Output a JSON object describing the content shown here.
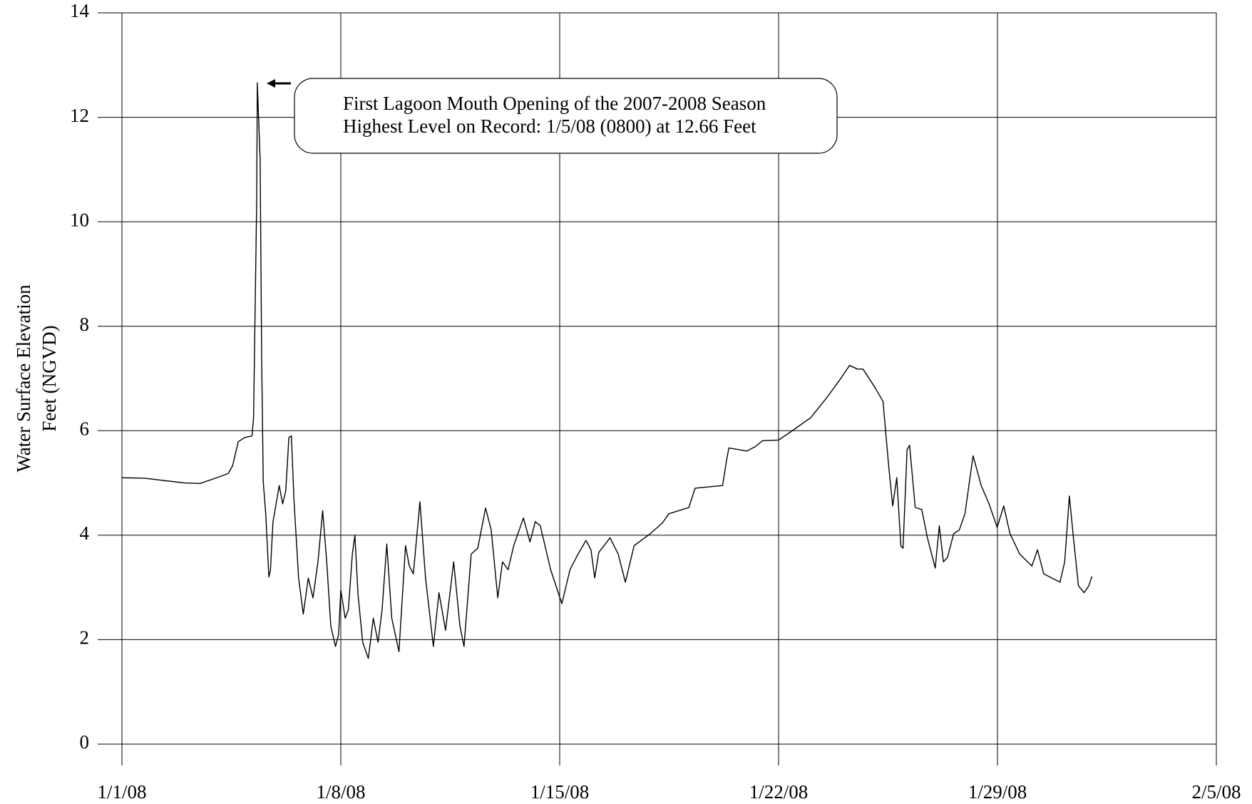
{
  "chart_data": {
    "type": "line",
    "ylabel": [
      "Water Surface Elevation",
      "Feet (NGVD)"
    ],
    "annotation": [
      "First Lagoon Mouth Opening of the 2007-2008 Season",
      "Highest Level on Record:  1/5/08 (0800) at 12.66 Feet"
    ],
    "color": "#000000",
    "grid": true,
    "xlim": [
      0,
      35
    ],
    "xticks": [
      {
        "value": 0,
        "label": "1/1/08"
      },
      {
        "value": 7,
        "label": "1/8/08"
      },
      {
        "value": 14,
        "label": "1/15/08"
      },
      {
        "value": 21,
        "label": "1/22/08"
      },
      {
        "value": 28,
        "label": "1/29/08"
      },
      {
        "value": 35,
        "label": "2/5/08"
      }
    ],
    "ylim": [
      0,
      14
    ],
    "yticks": [
      0,
      2,
      4,
      6,
      8,
      10,
      12,
      14
    ],
    "x": [
      0,
      0.72,
      2.0,
      2.5,
      3.03,
      3.4,
      3.54,
      3.72,
      3.93,
      4.16,
      4.21,
      4.31,
      4.33,
      4.42,
      4.47,
      4.52,
      4.6,
      4.7,
      4.75,
      4.83,
      4.96,
      5.03,
      5.14,
      5.24,
      5.34,
      5.42,
      5.5,
      5.65,
      5.8,
      5.96,
      6.11,
      6.27,
      6.42,
      6.55,
      6.68,
      6.83,
      6.93,
      7.0,
      7.14,
      7.24,
      7.37,
      7.45,
      7.55,
      7.7,
      7.88,
      8.04,
      8.19,
      8.32,
      8.47,
      8.63,
      8.86,
      9.07,
      9.19,
      9.32,
      9.53,
      9.71,
      9.96,
      10.14,
      10.35,
      10.61,
      10.81,
      10.94,
      11.17,
      11.38,
      11.63,
      11.81,
      12.02,
      12.17,
      12.35,
      12.53,
      12.84,
      13.05,
      13.22,
      13.38,
      13.71,
      14.07,
      14.33,
      14.59,
      14.84,
      15.0,
      15.12,
      15.25,
      15.61,
      15.87,
      16.1,
      16.38,
      16.9,
      17.28,
      17.49,
      18.13,
      18.33,
      19.21,
      19.33,
      19.41,
      19.98,
      20.24,
      20.49,
      21.0,
      21.39,
      22.03,
      22.55,
      22.93,
      23.27,
      23.52,
      23.7,
      24.09,
      24.34,
      24.52,
      24.65,
      24.78,
      24.91,
      24.98,
      25.11,
      25.19,
      25.37,
      25.58,
      25.76,
      26.01,
      26.14,
      26.27,
      26.4,
      26.6,
      26.78,
      26.96,
      27.22,
      27.48,
      27.73,
      27.99,
      28.2,
      28.4,
      28.71,
      29.1,
      29.28,
      29.48,
      30.0,
      30.15,
      30.3,
      30.43,
      30.59,
      30.77,
      30.92,
      31.02
    ],
    "values": [
      5.1,
      5.09,
      5.0,
      4.99,
      5.1,
      5.18,
      5.33,
      5.79,
      5.87,
      5.9,
      6.25,
      10.4,
      12.66,
      11.2,
      7.33,
      5.02,
      4.4,
      3.2,
      3.33,
      4.25,
      4.7,
      4.95,
      4.6,
      4.85,
      5.87,
      5.9,
      4.7,
      3.18,
      2.49,
      3.18,
      2.8,
      3.49,
      4.47,
      3.49,
      2.26,
      1.87,
      2.1,
      2.95,
      2.41,
      2.57,
      3.64,
      4.0,
      2.87,
      1.95,
      1.64,
      2.41,
      1.95,
      2.57,
      3.83,
      2.41,
      1.77,
      3.8,
      3.41,
      3.26,
      4.64,
      3.18,
      1.87,
      2.9,
      2.18,
      3.49,
      2.26,
      1.87,
      3.64,
      3.75,
      4.52,
      4.1,
      2.8,
      3.49,
      3.34,
      3.8,
      4.33,
      3.87,
      4.26,
      4.18,
      3.34,
      2.69,
      3.34,
      3.64,
      3.9,
      3.72,
      3.18,
      3.67,
      3.95,
      3.64,
      3.1,
      3.8,
      4.03,
      4.23,
      4.41,
      4.53,
      4.9,
      4.95,
      5.41,
      5.67,
      5.61,
      5.69,
      5.81,
      5.82,
      5.98,
      6.25,
      6.64,
      6.95,
      7.25,
      7.18,
      7.18,
      6.82,
      6.56,
      5.33,
      4.56,
      5.1,
      3.8,
      3.75,
      5.64,
      5.72,
      4.53,
      4.49,
      3.95,
      3.37,
      4.18,
      3.49,
      3.57,
      4.03,
      4.1,
      4.41,
      5.52,
      4.95,
      4.6,
      4.15,
      4.56,
      4.03,
      3.64,
      3.41,
      3.72,
      3.26,
      3.1,
      3.49,
      4.75,
      3.95,
      3.03,
      2.9,
      3.03,
      3.21
    ]
  }
}
